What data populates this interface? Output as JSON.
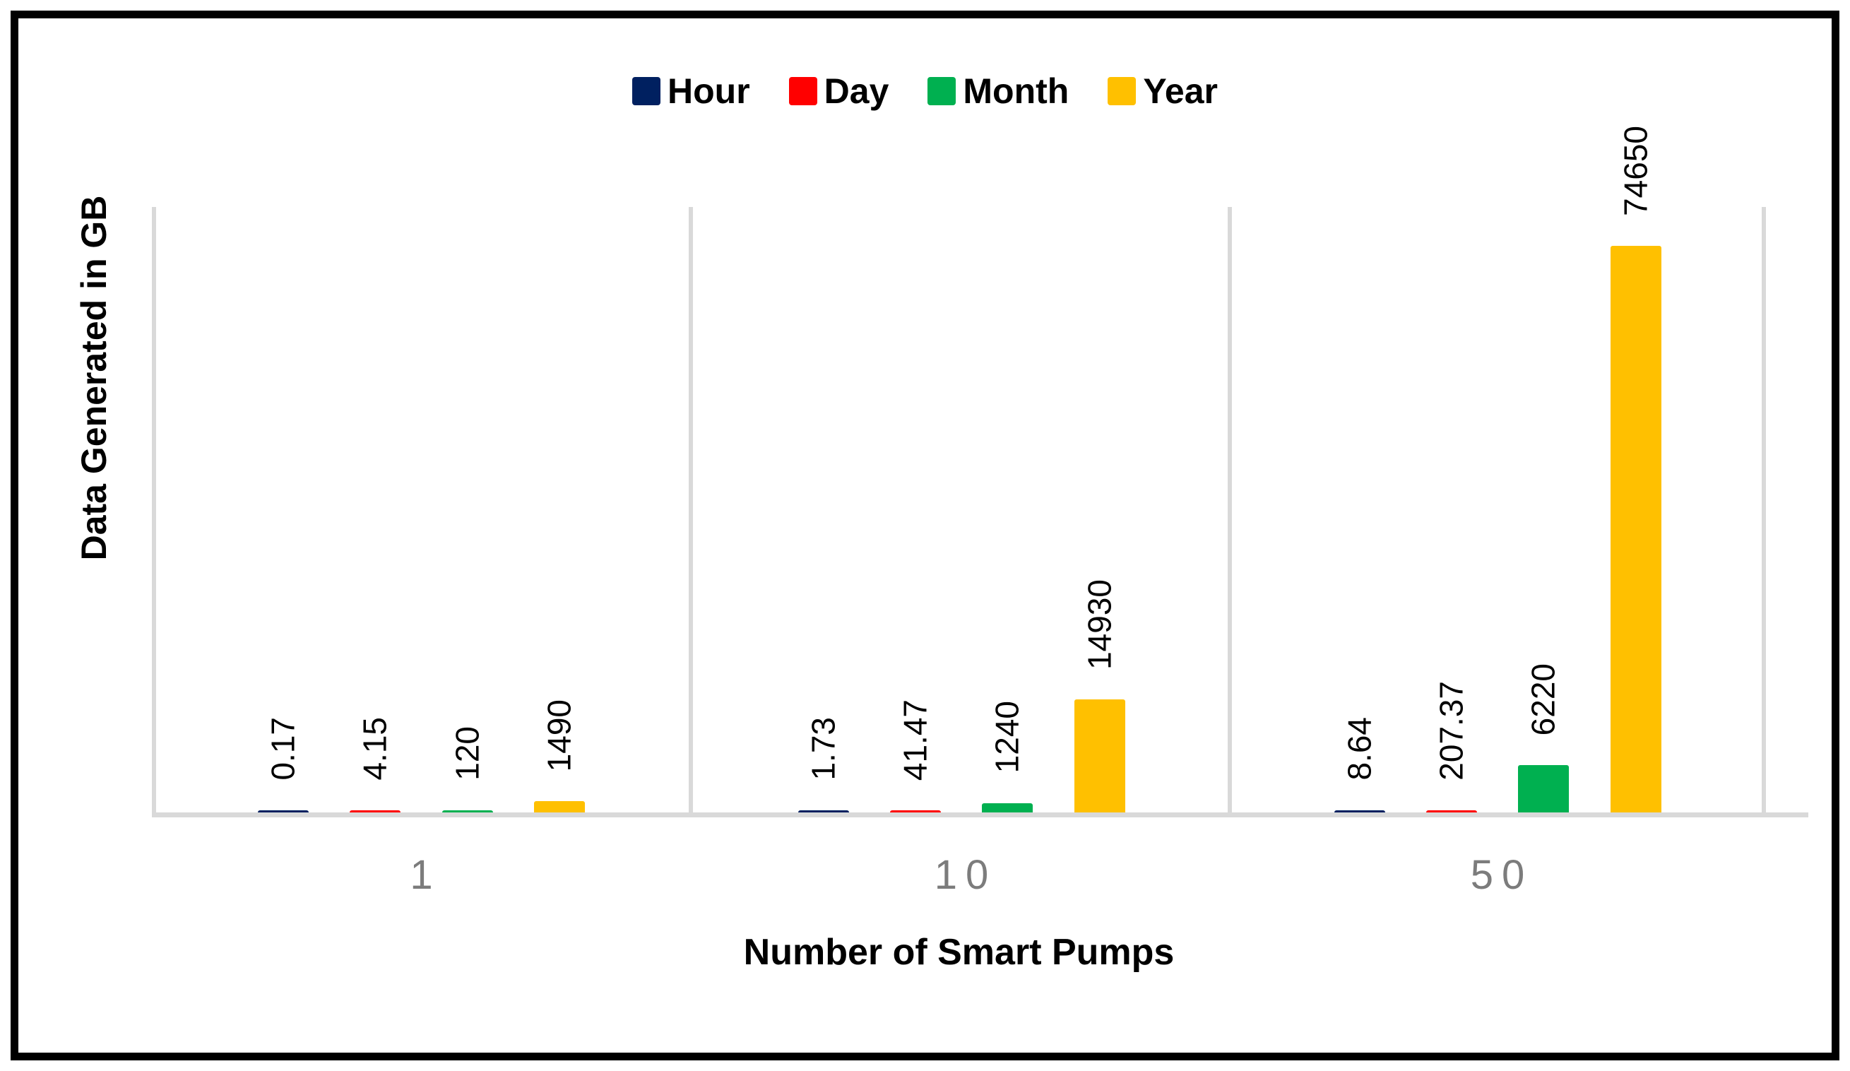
{
  "chart_data": {
    "type": "bar",
    "title": "",
    "xlabel": "Number of Smart Pumps",
    "ylabel": "Data Generated in GB",
    "categories": [
      "1",
      "10",
      "50"
    ],
    "series": [
      {
        "name": "Hour",
        "color": "#002060",
        "values": [
          0.17,
          1.73,
          8.64
        ],
        "labels": [
          "0.17",
          "1.73",
          "8.64"
        ]
      },
      {
        "name": "Day",
        "color": "#ff0000",
        "values": [
          4.15,
          41.47,
          207.37
        ],
        "labels": [
          "4.15",
          "41.47",
          "207.37"
        ]
      },
      {
        "name": "Month",
        "color": "#00b050",
        "values": [
          120,
          1240,
          6220
        ],
        "labels": [
          "120",
          "1240",
          "6220"
        ]
      },
      {
        "name": "Year",
        "color": "#ffc000",
        "values": [
          1490,
          14930,
          74650
        ],
        "labels": [
          "1490",
          "14930",
          "74650"
        ]
      }
    ],
    "legend_position": "top",
    "legend_entries": [
      "Hour",
      "Day",
      "Month",
      "Year"
    ],
    "data_labels_rotation": "vertical",
    "ylim": [
      0,
      80000
    ],
    "y_axis_ticks_visible": false,
    "grid": "vertical category separators only",
    "axis_line_color": "#d9d9d9",
    "tick_label_color": "#7c7c7c",
    "frame_border_color": "#000000"
  }
}
